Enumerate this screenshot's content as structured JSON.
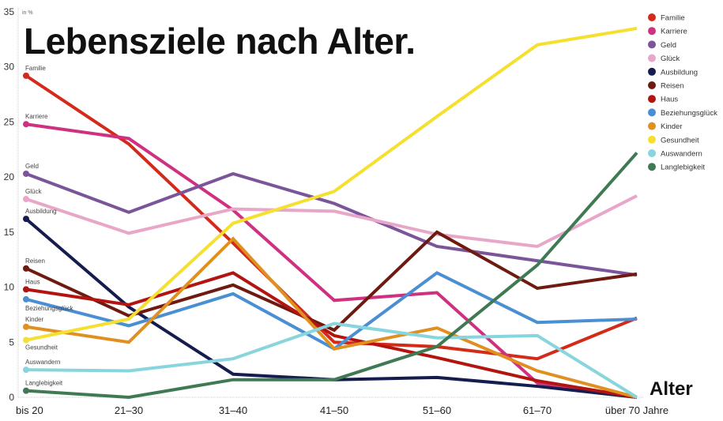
{
  "chart_data": {
    "type": "line",
    "title": "Lebensziele nach Alter.",
    "xlabel": "Alter",
    "ylabel": "in %",
    "ylim": [
      0,
      35
    ],
    "yticks": [
      0,
      5,
      10,
      15,
      20,
      25,
      30,
      35
    ],
    "grid": false,
    "legend_position": "top-right",
    "categories": [
      "bis 20",
      "21–30",
      "31–40",
      "41–50",
      "51–60",
      "61–70",
      "über 70 Jahre"
    ],
    "series": [
      {
        "name": "Familie",
        "color": "#d42a1a",
        "values": [
          29.2,
          23.0,
          14.0,
          5.0,
          4.6,
          3.5,
          7.2
        ]
      },
      {
        "name": "Karriere",
        "color": "#d03080",
        "values": [
          24.8,
          23.5,
          17.0,
          8.8,
          9.5,
          1.3,
          0
        ]
      },
      {
        "name": "Geld",
        "color": "#7a559a",
        "values": [
          20.3,
          16.8,
          20.3,
          17.6,
          13.7,
          12.4,
          11.1
        ]
      },
      {
        "name": "Glück",
        "color": "#e8a6c8",
        "values": [
          18.0,
          14.9,
          17.1,
          16.9,
          14.8,
          13.7,
          18.3
        ]
      },
      {
        "name": "Ausbildung",
        "color": "#151c4e",
        "values": [
          16.2,
          8.2,
          2.1,
          1.6,
          1.8,
          1.0,
          0
        ]
      },
      {
        "name": "Reisen",
        "color": "#6e1a10",
        "values": [
          11.7,
          7.4,
          10.2,
          6.1,
          15.0,
          9.9,
          11.2
        ]
      },
      {
        "name": "Haus",
        "color": "#b3140f",
        "values": [
          9.8,
          8.4,
          11.3,
          5.6,
          3.6,
          1.5,
          0
        ]
      },
      {
        "name": "Beziehungsglück",
        "color": "#4a8fd4",
        "values": [
          8.9,
          6.5,
          9.4,
          4.4,
          11.3,
          6.8,
          7.1
        ]
      },
      {
        "name": "Kinder",
        "color": "#e09020",
        "values": [
          6.4,
          5.0,
          14.4,
          4.4,
          6.3,
          2.4,
          0
        ]
      },
      {
        "name": "Gesundheit",
        "color": "#f5e030",
        "values": [
          5.2,
          7.1,
          15.8,
          18.7,
          25.5,
          32.0,
          33.5
        ]
      },
      {
        "name": "Auswandern",
        "color": "#88d5dd",
        "values": [
          2.5,
          2.4,
          3.5,
          6.7,
          5.4,
          5.6,
          0
        ]
      },
      {
        "name": "Langlebigkeit",
        "color": "#3f7a52",
        "values": [
          0.6,
          0,
          1.6,
          1.6,
          4.6,
          12.0,
          22.2
        ]
      }
    ]
  }
}
